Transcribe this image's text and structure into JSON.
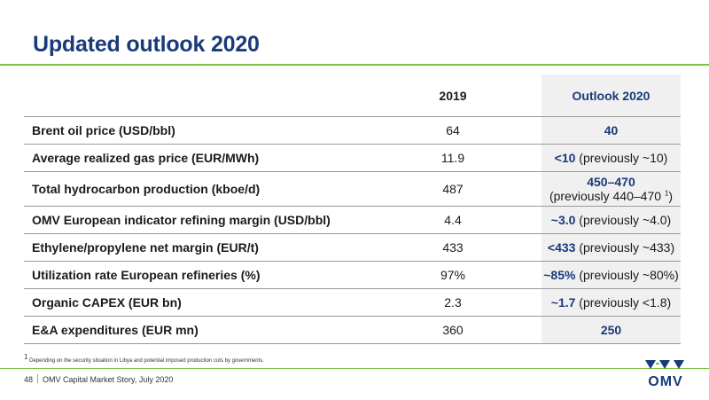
{
  "title": "Updated outlook 2020",
  "table": {
    "headers": [
      "",
      "2019",
      "Outlook 2020"
    ],
    "rows": [
      {
        "label": "Brent oil price (USD/bbl)",
        "y2019": "64",
        "outlook_bold": "40",
        "outlook_note": ""
      },
      {
        "label": "Average realized gas price (EUR/MWh)",
        "y2019": "11.9",
        "outlook_bold": "<10",
        "outlook_note": " (previously ~10)"
      },
      {
        "label": "Total hydrocarbon production (kboe/d)",
        "y2019": "487",
        "outlook_bold": "450–470",
        "outlook_note": "(previously 440–470",
        "outlook_sup": "1",
        "outlook_close": ")"
      },
      {
        "label": "OMV European indicator refining margin (USD/bbl)",
        "y2019": "4.4",
        "outlook_bold": "~3.0",
        "outlook_note": " (previously ~4.0)"
      },
      {
        "label": "Ethylene/propylene net margin (EUR/t)",
        "y2019": "433",
        "outlook_bold": "<433",
        "outlook_note": " (previously ~433)"
      },
      {
        "label": "Utilization rate European refineries (%)",
        "y2019": "97%",
        "outlook_bold": "~85%",
        "outlook_note": " (previously ~80%)"
      },
      {
        "label": "Organic CAPEX (EUR bn)",
        "y2019": "2.3",
        "outlook_bold": "~1.7",
        "outlook_note": " (previously <1.8)"
      },
      {
        "label": "E&A expenditures (EUR mn)",
        "y2019": "360",
        "outlook_bold": "250",
        "outlook_note": ""
      }
    ]
  },
  "footnote": {
    "marker": "1",
    "text": " Depending on the security situation in Libya and potential imposed production cuts by governments."
  },
  "footer": {
    "page_number": "48",
    "text": "OMV Capital Market Story, July 2020"
  },
  "logo": {
    "text": "OMV",
    "icon": "omv-logo-icon"
  },
  "colors": {
    "title": "#1a3a7a",
    "accent": "#7cc142",
    "outlook_bg": "#f0f0f0"
  }
}
